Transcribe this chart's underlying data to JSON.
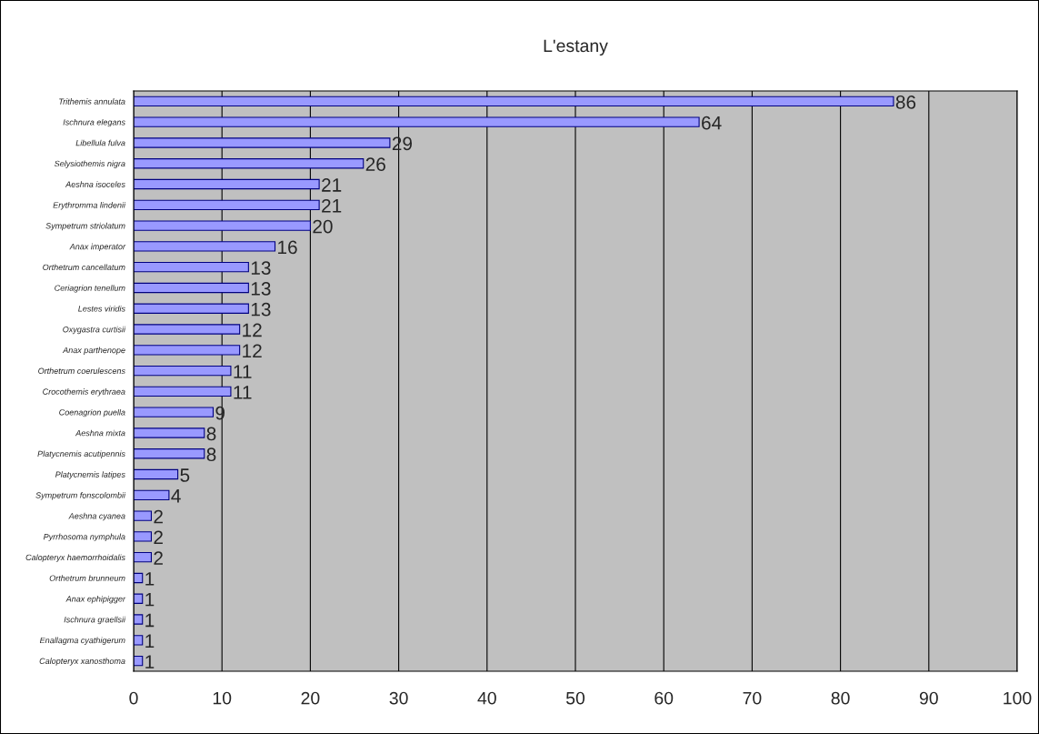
{
  "chart_data": {
    "type": "bar",
    "orientation": "horizontal",
    "title": "L'estany",
    "categories": [
      "Trithemis annulata",
      "Ischnura elegans",
      "Libellula fulva",
      "Selysiothemis nigra",
      "Aeshna isoceles",
      "Erythromma lindenii",
      "Sympetrum striolatum",
      "Anax imperator",
      "Orthetrum cancellatum",
      "Ceriagrion tenellum",
      "Lestes viridis",
      "Oxygastra curtisii",
      "Anax parthenope",
      "Orthetrum coerulescens",
      "Crocothemis erythraea",
      "Coenagrion puella",
      "Aeshna mixta",
      "Platycnemis acutipennis",
      "Platycnemis latipes",
      "Sympetrum fonscolombii",
      "Aeshna cyanea",
      "Pyrrhosoma nymphula",
      "Calopteryx haemorrhoidalis",
      "Orthetrum brunneum",
      "Anax ephipigger",
      "Ischnura graellsii",
      "Enallagma cyathigerum",
      "Calopteryx xanosthoma"
    ],
    "values": [
      86,
      64,
      29,
      26,
      21,
      21,
      20,
      16,
      13,
      13,
      13,
      12,
      12,
      11,
      11,
      9,
      8,
      8,
      5,
      4,
      2,
      2,
      2,
      1,
      1,
      1,
      1,
      1
    ],
    "color": "#9999ff",
    "xlim": [
      0,
      100
    ],
    "xticks": [
      0,
      10,
      20,
      30,
      40,
      50,
      60,
      70,
      80,
      90,
      100
    ],
    "grid": "x",
    "data_labels": true,
    "legend": false
  }
}
